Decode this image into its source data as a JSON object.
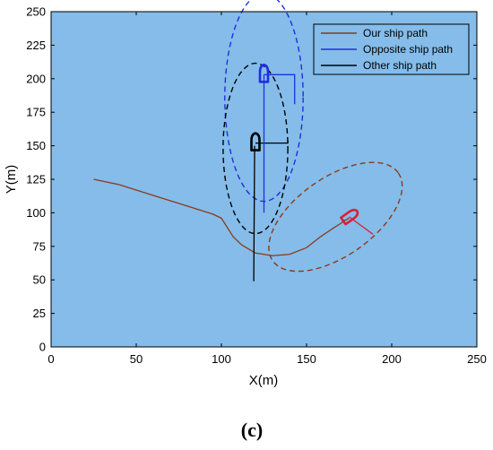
{
  "chart_data": {
    "type": "line",
    "xlabel": "X(m)",
    "ylabel": "Y(m)",
    "xlim": [
      0,
      250
    ],
    "ylim": [
      0,
      250
    ],
    "xticks": [
      0,
      50,
      100,
      150,
      200,
      250
    ],
    "yticks": [
      0,
      25,
      50,
      75,
      100,
      125,
      150,
      175,
      200,
      225,
      250
    ],
    "grid": false,
    "legend_position": "top-right",
    "background_color": "#85BCE9",
    "series": [
      {
        "name": "Our ship path",
        "color": "#8B3A1A",
        "x": [
          25,
          40,
          60,
          80,
          95,
          100,
          103,
          107,
          112,
          120,
          130,
          140,
          150,
          158,
          165,
          170,
          172,
          175
        ],
        "y": [
          125,
          121,
          113,
          105,
          99,
          96,
          90,
          82,
          76,
          70,
          68,
          69,
          74,
          82,
          88,
          92,
          94,
          96
        ]
      },
      {
        "name": "Opposite ship path",
        "color": "#1F2FE0",
        "x": [
          125,
          125
        ],
        "y": [
          100,
          203
        ]
      },
      {
        "name": "Other ship path",
        "color": "#000000",
        "x": [
          119,
          119.5
        ],
        "y": [
          49,
          150
        ]
      }
    ],
    "ellipses": [
      {
        "ship": "Opposite ship path",
        "cx": 125,
        "cy": 186,
        "rx": 23,
        "ry": 61,
        "angle_deg": 0,
        "color": "#1F2FE0"
      },
      {
        "ship": "Other ship path",
        "cx": 120,
        "cy": 148,
        "rx": 19,
        "ry": 50,
        "angle_deg": 0,
        "color": "#000000"
      },
      {
        "ship": "Our ship path",
        "cx": 167,
        "cy": 97,
        "rx": 45,
        "ry": 23,
        "angle_deg": 35,
        "color": "#8B3A1A"
      }
    ],
    "ships": [
      {
        "ship": "Opposite ship path",
        "x": 125,
        "y": 203,
        "heading_deg": 90,
        "color": "#1F2FE0",
        "marker_to": [
          [
            125,
            203
          ],
          [
            143,
            203
          ],
          [
            143,
            181
          ]
        ]
      },
      {
        "ship": "Other ship path",
        "x": 120,
        "y": 152,
        "heading_deg": 90,
        "color": "#000000",
        "marker_to": [
          [
            120,
            152
          ],
          [
            139,
            152
          ],
          [
            139,
            154
          ]
        ]
      },
      {
        "ship": "Our ship path",
        "x": 175,
        "y": 97,
        "heading_deg": 35,
        "color": "#D8203A",
        "marker_to": [
          [
            175,
            97
          ],
          [
            189,
            84
          ]
        ]
      }
    ]
  },
  "caption": "(c)"
}
